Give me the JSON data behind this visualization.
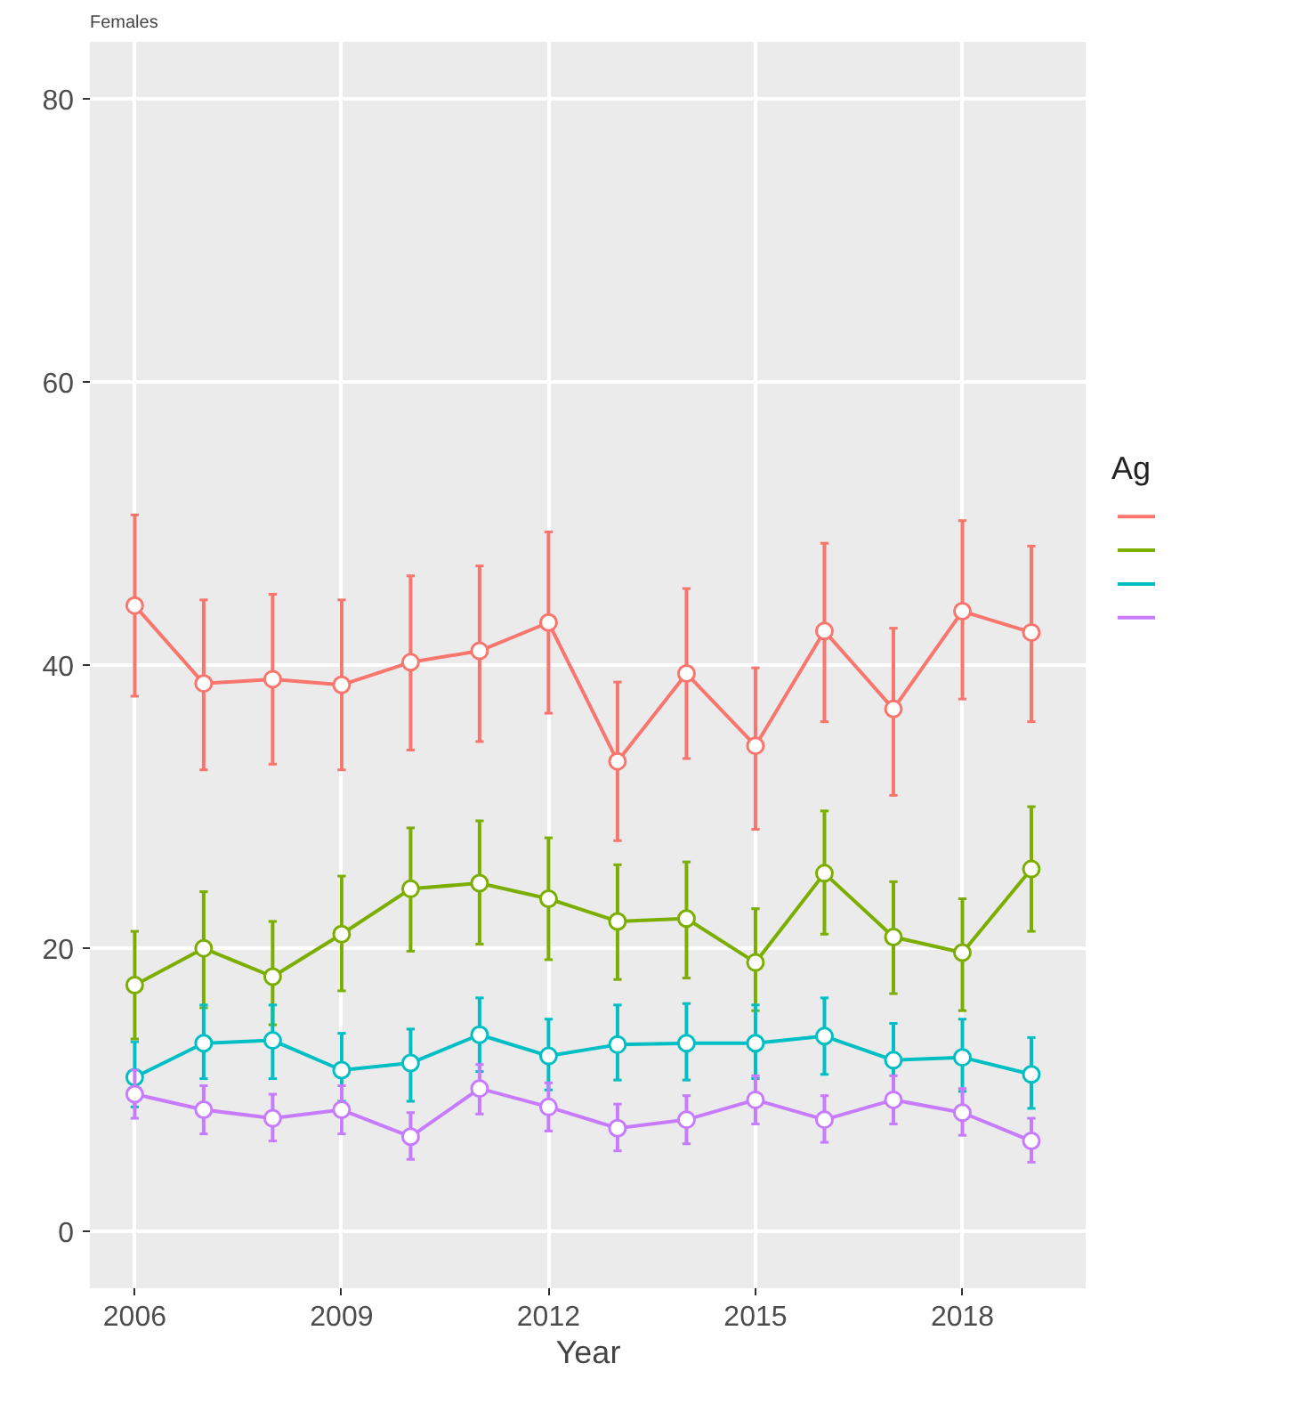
{
  "chart_data": {
    "type": "line",
    "title": "Females",
    "xlabel": "Year",
    "legend_title": "Ag",
    "grid": true,
    "marker": "circle",
    "line_style": "solid",
    "x": [
      2006,
      2007,
      2008,
      2009,
      2010,
      2011,
      2012,
      2013,
      2014,
      2015,
      2016,
      2017,
      2018,
      2019
    ],
    "xlim": [
      2005.35,
      2019.8
    ],
    "xticks": [
      2006,
      2009,
      2012,
      2015,
      2018
    ],
    "ylim": [
      -4,
      84
    ],
    "yticks": [
      0,
      20,
      40,
      60,
      80
    ],
    "series": [
      {
        "color": "#f8766d",
        "values": [
          44.2,
          38.7,
          39,
          38.6,
          40.2,
          41,
          43,
          33.2,
          39.4,
          34.3,
          42.4,
          36.9,
          43.8,
          42.3
        ],
        "errors": [
          [
            37.8,
            50.6
          ],
          [
            32.6,
            44.6
          ],
          [
            33,
            45
          ],
          [
            32.6,
            44.6
          ],
          [
            34,
            46.3
          ],
          [
            34.6,
            47
          ],
          [
            36.6,
            49.4
          ],
          [
            27.6,
            38.8
          ],
          [
            33.4,
            45.4
          ],
          [
            28.4,
            39.8
          ],
          [
            36,
            48.6
          ],
          [
            30.8,
            42.6
          ],
          [
            37.6,
            50.2
          ],
          [
            36,
            48.4
          ]
        ]
      },
      {
        "color": "#7cae00",
        "values": [
          17.4,
          20,
          18,
          21,
          24.2,
          24.6,
          23.5,
          21.9,
          22.1,
          19,
          25.3,
          20.8,
          19.7,
          25.6
        ],
        "errors": [
          [
            13.6,
            21.2
          ],
          [
            15.8,
            24
          ],
          [
            14.6,
            21.9
          ],
          [
            17,
            25.1
          ],
          [
            19.8,
            28.5
          ],
          [
            20.3,
            29
          ],
          [
            19.2,
            27.8
          ],
          [
            17.8,
            25.9
          ],
          [
            17.9,
            26.1
          ],
          [
            15.6,
            22.8
          ],
          [
            21,
            29.7
          ],
          [
            16.8,
            24.7
          ],
          [
            15.6,
            23.5
          ],
          [
            21.2,
            30
          ]
        ]
      },
      {
        "color": "#00bfc4",
        "values": [
          10.9,
          13.3,
          13.5,
          11.4,
          11.9,
          13.9,
          12.4,
          13.2,
          13.3,
          13.3,
          13.8,
          12.1,
          12.3,
          11.1
        ],
        "errors": [
          [
            8.8,
            13.4
          ],
          [
            10.8,
            16
          ],
          [
            10.8,
            16
          ],
          [
            9.2,
            14
          ],
          [
            9.2,
            14.3
          ],
          [
            11.3,
            16.5
          ],
          [
            10,
            15
          ],
          [
            10.7,
            16
          ],
          [
            10.7,
            16.1
          ],
          [
            10.8,
            16
          ],
          [
            11.1,
            16.5
          ],
          [
            9.8,
            14.7
          ],
          [
            9.9,
            15
          ],
          [
            8.7,
            13.7
          ]
        ]
      },
      {
        "color": "#c77cff",
        "values": [
          9.7,
          8.6,
          8,
          8.6,
          6.7,
          10.1,
          8.8,
          7.3,
          7.9,
          9.3,
          7.9,
          9.3,
          8.4,
          6.4
        ],
        "errors": [
          [
            8,
            11.4
          ],
          [
            6.9,
            10.3
          ],
          [
            6.4,
            9.7
          ],
          [
            6.9,
            10.3
          ],
          [
            5.1,
            8.4
          ],
          [
            8.3,
            11.8
          ],
          [
            7.1,
            10.5
          ],
          [
            5.7,
            9
          ],
          [
            6.2,
            9.6
          ],
          [
            7.6,
            11
          ],
          [
            6.3,
            9.6
          ],
          [
            7.6,
            11
          ],
          [
            6.8,
            10.1
          ],
          [
            4.9,
            8
          ]
        ]
      }
    ]
  }
}
